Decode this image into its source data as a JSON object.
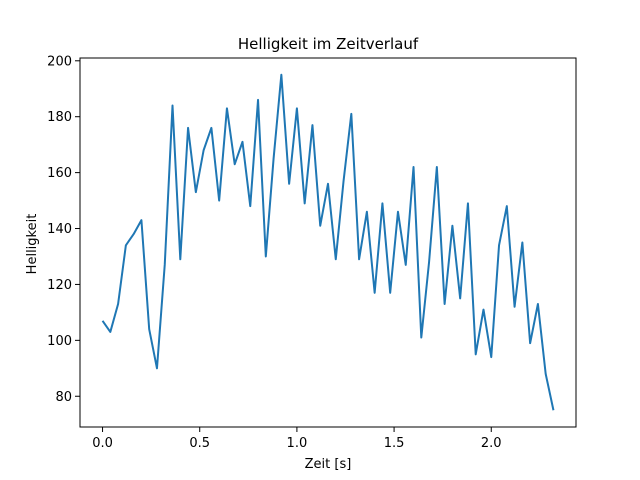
{
  "chart_data": {
    "type": "line",
    "title": "Helligkeit im Zeitverlauf",
    "xlabel": "Zeit [s]",
    "ylabel": "Helligkeit",
    "xlim": [
      -0.116,
      2.436
    ],
    "ylim": [
      69,
      201
    ],
    "xticks": [
      0.0,
      0.5,
      1.0,
      1.5,
      2.0
    ],
    "xtick_labels": [
      "0.0",
      "0.5",
      "1.0",
      "1.5",
      "2.0"
    ],
    "yticks": [
      80,
      100,
      120,
      140,
      160,
      180,
      200
    ],
    "ytick_labels": [
      "80",
      "100",
      "120",
      "140",
      "160",
      "180",
      "200"
    ],
    "grid": false,
    "legend": "none",
    "line_color": "#1f77b4",
    "series": [
      {
        "x": [
          0.0,
          0.04,
          0.08,
          0.12,
          0.16,
          0.2,
          0.24,
          0.28,
          0.32,
          0.36,
          0.4,
          0.44,
          0.48,
          0.52,
          0.56,
          0.6,
          0.64,
          0.68,
          0.72,
          0.76,
          0.8,
          0.84,
          0.88,
          0.92,
          0.96,
          1.0,
          1.04,
          1.08,
          1.12,
          1.16,
          1.2,
          1.24,
          1.28,
          1.32,
          1.36,
          1.4,
          1.44,
          1.48,
          1.52,
          1.56,
          1.6,
          1.64,
          1.68,
          1.72,
          1.76,
          1.8,
          1.84,
          1.88,
          1.92,
          1.96,
          2.0,
          2.04,
          2.08,
          2.12,
          2.16,
          2.2,
          2.24,
          2.28,
          2.32
        ],
        "y": [
          107,
          103,
          113,
          134,
          138,
          143,
          104,
          90,
          127,
          184,
          129,
          176,
          153,
          168,
          176,
          150,
          183,
          163,
          171,
          148,
          186,
          130,
          165,
          195,
          156,
          183,
          149,
          177,
          141,
          156,
          129,
          157,
          181,
          129,
          146,
          117,
          149,
          117,
          146,
          127,
          162,
          101,
          128,
          162,
          113,
          141,
          115,
          149,
          95,
          111,
          94,
          134,
          148,
          112,
          135,
          99,
          113,
          88,
          75
        ]
      }
    ]
  }
}
